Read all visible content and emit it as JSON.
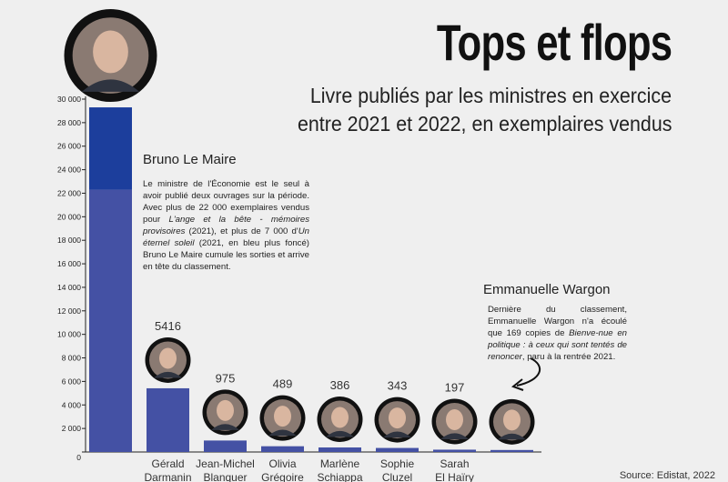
{
  "header": {
    "title": "Tops et flops",
    "subtitle_line1": "Livre publiés par les ministres en exercice",
    "subtitle_line2": "entre 2021 et 2022, en exemplaires vendus"
  },
  "annotations": {
    "lemaire": {
      "name": "Bruno Le Maire",
      "p1": "Le ministre de l'Économie est le seul à avoir publié deux ouvrages sur la période. Avec plus de 22 000 exemplaires vendus pour ",
      "book1": "L'ange et la bête - mémoires provisoires",
      "p2": " (2021), et plus de 7 000 d'",
      "book2": "Un éternel soleil",
      "p3": " (2021, en bleu plus foncé) Bruno Le Maire cumule les sorties et arrive en tête du classement."
    },
    "wargon": {
      "name": "Emmanuelle Wargon",
      "p1": "Dernière du classement, Emmanuelle Wargon n'a écoulé que 169 copies de ",
      "book1": "Bienve-nue en politique : à ceux qui sont tentés de renoncer",
      "p2": ", paru à la rentrée 2021."
    }
  },
  "source": "Source: Edistat, 2022",
  "colors": {
    "bar": "#4451a4",
    "bar_dark": "#1c3e9c",
    "axis": "#222222",
    "avatar_ring": "#111111"
  },
  "chart_data": {
    "type": "bar",
    "ylim": [
      0,
      30000
    ],
    "yticks": [
      "0",
      "2 000",
      "4 000",
      "6 000",
      "8 000",
      "10 000",
      "12 000",
      "14 000",
      "16 000",
      "18 000",
      "20 000",
      "22 000",
      "24 000",
      "26 000",
      "28 000",
      "30 000"
    ],
    "categories": [
      {
        "line1": "",
        "line2": ""
      },
      {
        "line1": "Gérald",
        "line2": "Darmanin"
      },
      {
        "line1": "Jean-Michel",
        "line2": "Blanquer"
      },
      {
        "line1": "Olivia",
        "line2": "Grégoire"
      },
      {
        "line1": "Marlène",
        "line2": "Schiappa"
      },
      {
        "line1": "Sophie",
        "line2": "Cluzel"
      },
      {
        "line1": "Sarah",
        "line2": "El Haïry"
      },
      {
        "line1": "",
        "line2": ""
      }
    ],
    "series": [
      {
        "values": [
          22300,
          5416,
          975,
          489,
          386,
          343,
          197,
          169
        ]
      },
      {
        "values": [
          7000,
          0,
          0,
          0,
          0,
          0,
          0,
          0
        ]
      }
    ],
    "value_labels": [
      "",
      "5416",
      "975",
      "489",
      "386",
      "343",
      "197",
      ""
    ],
    "avatars": [
      "bruno-le-maire-portrait",
      "gerald-darmanin-portrait",
      "jean-michel-blanquer-portrait",
      "olivia-gregoire-portrait",
      "marlene-schiappa-portrait",
      "sophie-cluzel-portrait",
      "sarah-el-hairy-portrait",
      "emmanuelle-wargon-portrait"
    ]
  }
}
